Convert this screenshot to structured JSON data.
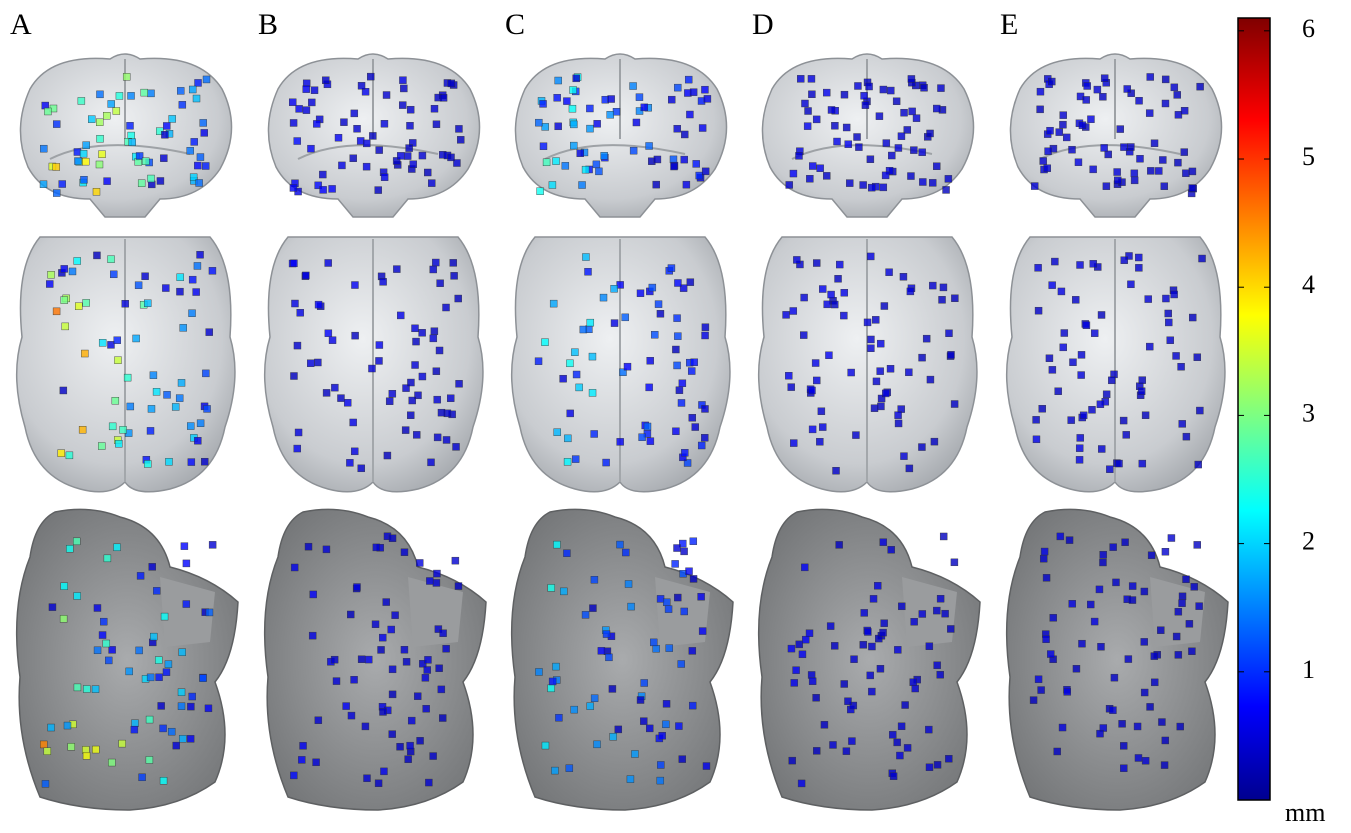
{
  "panels": [
    {
      "label": "A"
    },
    {
      "label": "B"
    },
    {
      "label": "C"
    },
    {
      "label": "D"
    },
    {
      "label": "E"
    }
  ],
  "colorbar": {
    "lim": [
      0,
      6.1
    ],
    "ticks": [
      1,
      2,
      3,
      4,
      5,
      6
    ],
    "unit": "mm"
  }
}
